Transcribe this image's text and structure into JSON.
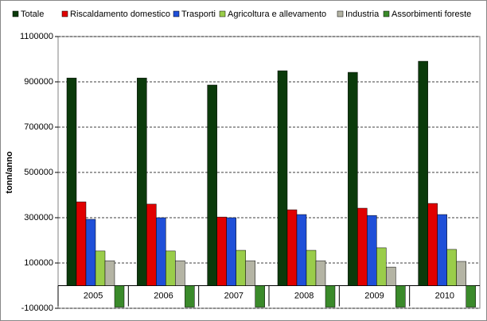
{
  "chart_data": {
    "type": "bar",
    "y_label": "tonn/anno",
    "categories": [
      "2005",
      "2006",
      "2007",
      "2008",
      "2009",
      "2010"
    ],
    "series": [
      {
        "name": "Totale",
        "color": "#0b3a0b",
        "values": [
          917000,
          917000,
          886000,
          949000,
          942000,
          991000
        ]
      },
      {
        "name": "Riscaldamento domestico",
        "color": "#e00000",
        "values": [
          370000,
          360000,
          303000,
          335000,
          342000,
          363000
        ]
      },
      {
        "name": "Trasporti",
        "color": "#1f4fd8",
        "values": [
          293000,
          300000,
          300000,
          314000,
          310000,
          314000
        ]
      },
      {
        "name": "Agricoltura e allevamento",
        "color": "#9acd4a",
        "values": [
          153000,
          153000,
          156000,
          156000,
          167000,
          160000
        ]
      },
      {
        "name": "Industria",
        "color": "#b4b4a4",
        "values": [
          110000,
          110000,
          110000,
          110000,
          82000,
          107000
        ]
      },
      {
        "name": "Assorbimenti foreste",
        "color": "#3a8a2a",
        "values": [
          -95000,
          -95000,
          -95000,
          -95000,
          -95000,
          -95000
        ]
      }
    ],
    "ylim": [
      -100000,
      1100000
    ],
    "yticks": [
      -100000,
      100000,
      300000,
      500000,
      700000,
      900000,
      1100000
    ],
    "grid": true,
    "legend": "top"
  }
}
